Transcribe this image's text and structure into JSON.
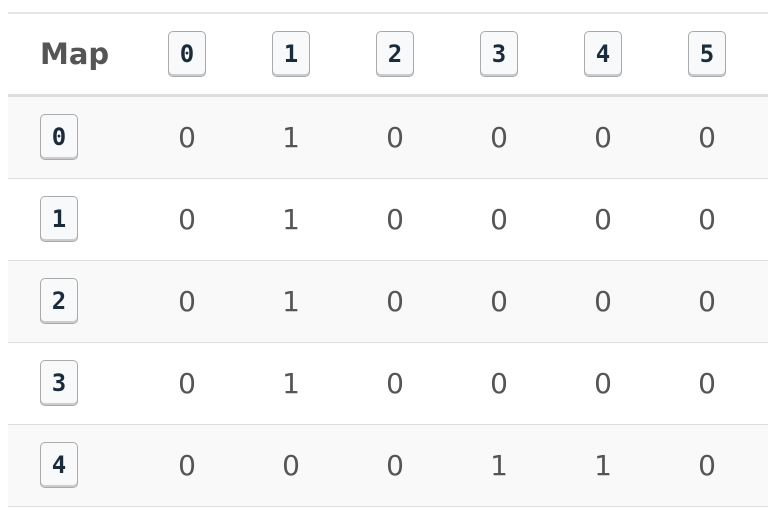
{
  "header": {
    "title": "Map",
    "columns": [
      "0",
      "1",
      "2",
      "3",
      "4",
      "5"
    ]
  },
  "table": {
    "rows": [
      {
        "key": "0",
        "cells": [
          0,
          1,
          0,
          0,
          0,
          0
        ]
      },
      {
        "key": "1",
        "cells": [
          0,
          1,
          0,
          0,
          0,
          0
        ]
      },
      {
        "key": "2",
        "cells": [
          0,
          1,
          0,
          0,
          0,
          0
        ]
      },
      {
        "key": "3",
        "cells": [
          0,
          1,
          0,
          0,
          0,
          0
        ]
      },
      {
        "key": "4",
        "cells": [
          0,
          0,
          0,
          1,
          1,
          0
        ]
      }
    ]
  }
}
